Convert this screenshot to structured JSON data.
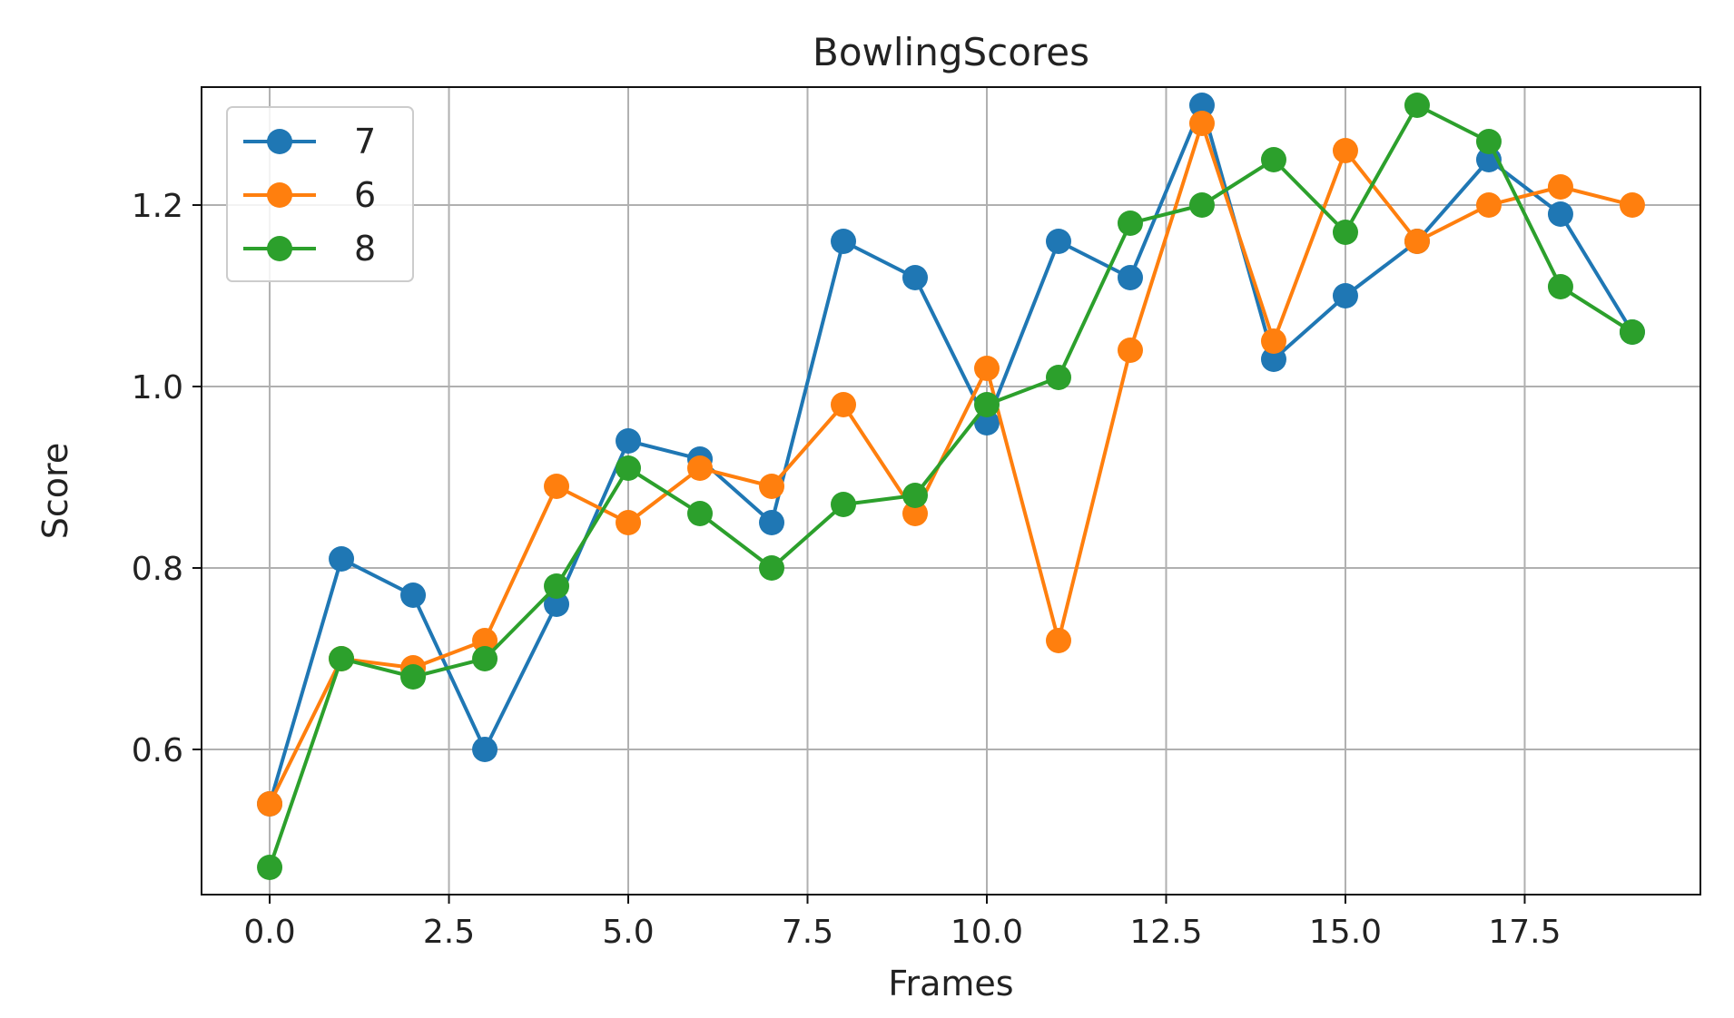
{
  "chart_data": {
    "type": "line",
    "title": "BowlingScores",
    "xlabel": "Frames",
    "ylabel": "Score",
    "xlim": [
      -0.95,
      19.95
    ],
    "ylim": [
      0.44,
      1.33
    ],
    "xticks": [
      0.0,
      2.5,
      5.0,
      7.5,
      10.0,
      12.5,
      15.0,
      17.5
    ],
    "xtick_labels": [
      "0.0",
      "2.5",
      "5.0",
      "7.5",
      "10.0",
      "12.5",
      "15.0",
      "17.5"
    ],
    "yticks": [
      0.6,
      0.8,
      1.0,
      1.2
    ],
    "ytick_labels": [
      "0.6",
      "0.8",
      "1.0",
      "1.2"
    ],
    "grid": true,
    "legend_position": "top-left",
    "x": [
      0,
      1,
      2,
      3,
      4,
      5,
      6,
      7,
      8,
      9,
      10,
      11,
      12,
      13,
      14,
      15,
      16,
      17,
      18,
      19
    ],
    "series": [
      {
        "name": "7",
        "color": "#1f77b4",
        "values": [
          0.54,
          0.81,
          0.77,
          0.6,
          0.76,
          0.94,
          0.92,
          0.85,
          1.16,
          1.12,
          0.96,
          1.16,
          1.12,
          1.31,
          1.03,
          1.1,
          1.16,
          1.25,
          1.19,
          1.06
        ]
      },
      {
        "name": "6",
        "color": "#ff7f0e",
        "values": [
          0.54,
          0.7,
          0.69,
          0.72,
          0.89,
          0.85,
          0.91,
          0.89,
          0.98,
          0.86,
          1.02,
          0.72,
          1.04,
          1.29,
          1.05,
          1.26,
          1.16,
          1.2,
          1.22,
          1.2
        ]
      },
      {
        "name": "8",
        "color": "#2ca02c",
        "values": [
          0.47,
          0.7,
          0.68,
          0.7,
          0.78,
          0.91,
          0.86,
          0.8,
          0.87,
          0.88,
          0.98,
          1.01,
          1.18,
          1.2,
          1.25,
          1.17,
          1.31,
          1.27,
          1.11,
          1.06
        ]
      }
    ]
  }
}
